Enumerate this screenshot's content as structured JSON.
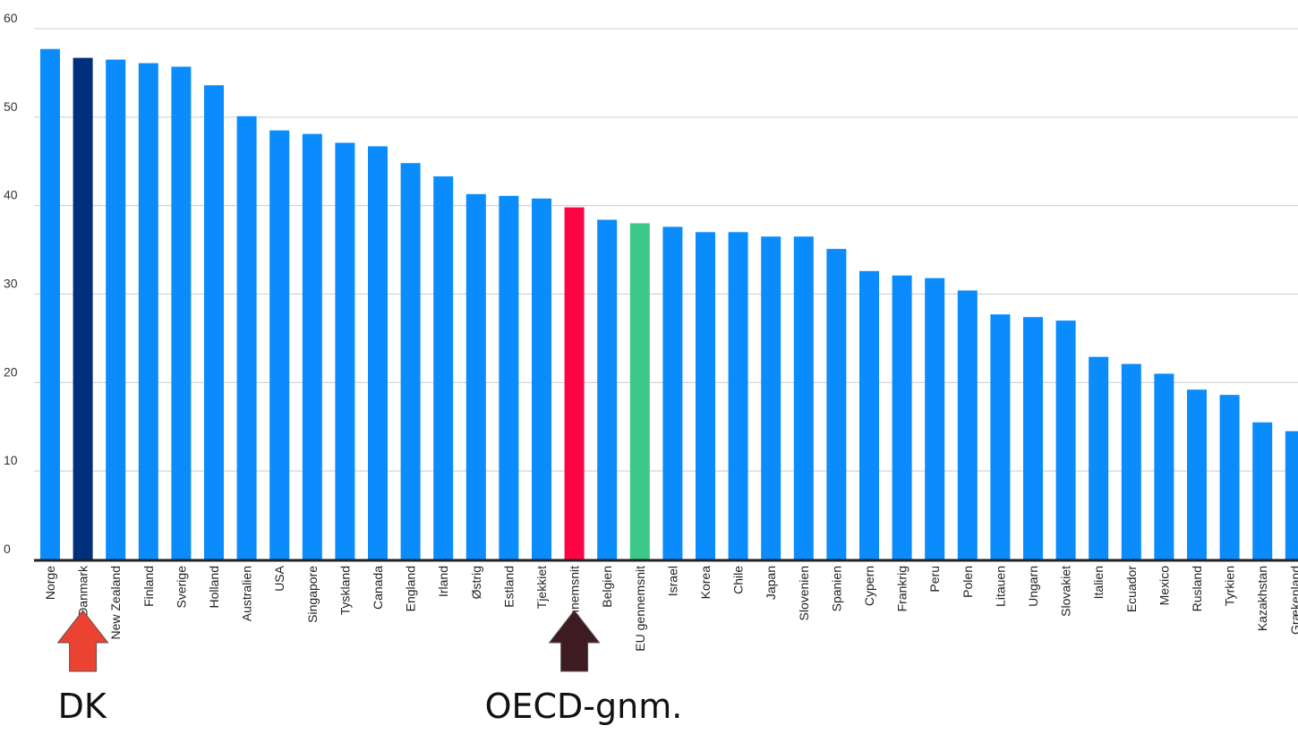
{
  "chart_data": {
    "type": "bar",
    "title": "",
    "xlabel": "",
    "ylabel": "",
    "ylim": [
      0,
      60
    ],
    "yticks": [
      0,
      10,
      20,
      30,
      40,
      50,
      60
    ],
    "grid": true,
    "categories": [
      "Norge",
      "Danmark",
      "New Zealand",
      "Finland",
      "Sverige",
      "Holland",
      "Australien",
      "USA",
      "Singapore",
      "Tyskland",
      "Canada",
      "England",
      "Irland",
      "Østrig",
      "Estland",
      "Tjekkiet",
      "OECD gennemsnit",
      "Belgien",
      "EU gennemsnit",
      "Israel",
      "Korea",
      "Chile",
      "Japan",
      "Slovenien",
      "Spanien",
      "Cypern",
      "Frankrig",
      "Peru",
      "Polen",
      "Litauen",
      "Ungarn",
      "Slovakiet",
      "Italien",
      "Ecuador",
      "Mexico",
      "Rusland",
      "Tyrkien",
      "Kazakhstan",
      "Grækenland"
    ],
    "values": [
      57.7,
      56.7,
      56.5,
      56.1,
      55.7,
      53.6,
      50.1,
      48.5,
      48.1,
      47.1,
      46.7,
      44.8,
      43.3,
      41.3,
      41.1,
      40.8,
      39.8,
      38.4,
      38.0,
      37.6,
      37.0,
      37.0,
      36.5,
      36.5,
      35.1,
      32.6,
      32.1,
      31.8,
      30.4,
      27.7,
      27.4,
      27.0,
      22.9,
      22.1,
      21.0,
      19.2,
      18.6,
      15.5,
      14.5
    ],
    "bar_colors": {
      "default": "#0a8cfc",
      "Danmark": "#002f7c",
      "OECD gennemsnit": "#fe0444",
      "EU gennemsnit": "#3cc987"
    },
    "annotations": [
      {
        "text": "DK",
        "target": "Danmark",
        "arrow_color": "#ec4232"
      },
      {
        "text": "OECD-gnm.",
        "target": "OECD gennemsnit",
        "arrow_color": "#3e1b21"
      }
    ]
  }
}
